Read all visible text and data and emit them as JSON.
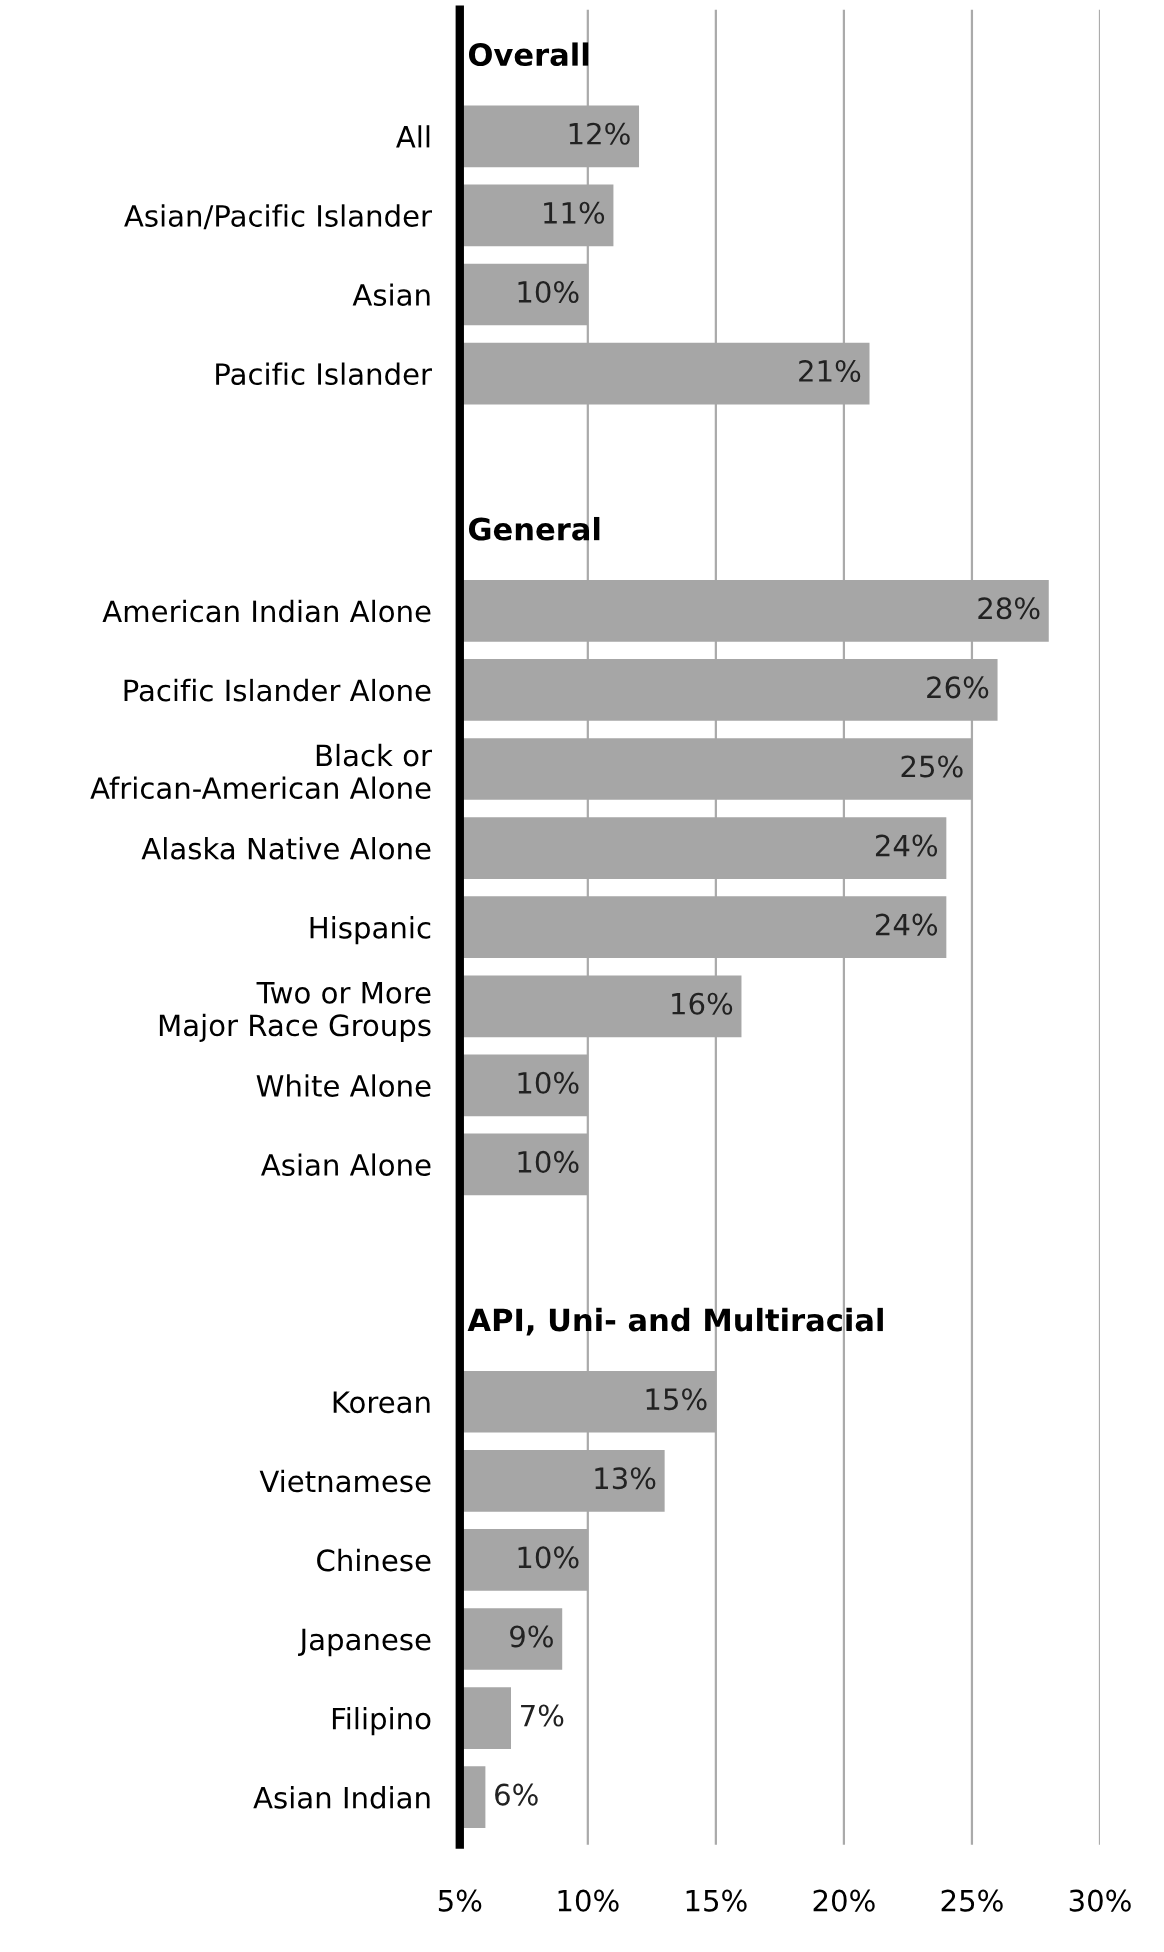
{
  "chart_data": {
    "type": "bar",
    "orientation": "horizontal",
    "categories": [
      "Overall",
      "All",
      "Asian/Pacific Islander",
      "Asian",
      "Pacific Islander",
      null,
      "General",
      "American Indian Alone",
      "Pacific Islander Alone",
      "Black or\nAfrican-American Alone",
      "Alaska Native Alone",
      "Hispanic",
      "Two or More\nMajor Race Groups",
      "White Alone",
      "Asian Alone",
      null,
      "API, Uni- and Multiracial",
      "Korean",
      "Vietnamese",
      "Chinese",
      "Japanese",
      "Filipino",
      "Asian Indian"
    ],
    "values": [
      null,
      12,
      11,
      10,
      21,
      null,
      null,
      28,
      26,
      25,
      24,
      24,
      16,
      10,
      10,
      null,
      null,
      15,
      13,
      10,
      9,
      7,
      6
    ],
    "value_labels": [
      null,
      "12%",
      "11%",
      "10%",
      "21%",
      null,
      null,
      "28%",
      "26%",
      "25%",
      "24%",
      "24%",
      "16%",
      "10%",
      "10%",
      null,
      null,
      "15%",
      "13%",
      "10%",
      "9%",
      "7%",
      "6%"
    ],
    "color": "#a6a6a6",
    "xlim": [
      5,
      30
    ],
    "xticks": [
      {
        "value": 5,
        "label": "5%"
      },
      {
        "value": 10,
        "label": "10%"
      },
      {
        "value": 15,
        "label": "15%"
      },
      {
        "value": 20,
        "label": "20%"
      },
      {
        "value": 25,
        "label": "25%"
      },
      {
        "value": 30,
        "label": "30%"
      }
    ],
    "grid": "x"
  }
}
